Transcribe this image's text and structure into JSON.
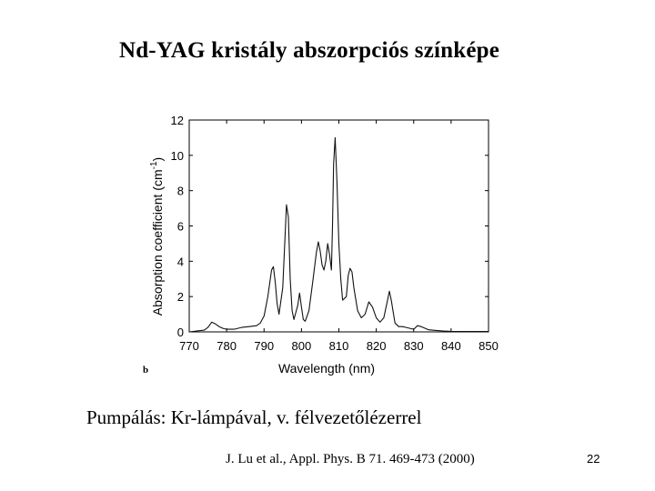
{
  "slide": {
    "title": "Nd-YAG kristály abszorpciós színképe",
    "body_text": "Pumpálás: Kr-lámpával, v. félvezetőlézerrel",
    "citation": "J. Lu et al., Appl. Phys. B 71. 469-473 (2000)",
    "page_number": "22"
  },
  "chart_data": {
    "type": "line",
    "panel_label": "b",
    "xlabel": "Wavelength (nm)",
    "ylabel": "Absorption coefficient (cm",
    "ylabel_superscript": "-1",
    "ylabel_suffix": ")",
    "xlim": [
      770,
      850
    ],
    "ylim": [
      0,
      12
    ],
    "xticks": [
      770,
      780,
      790,
      800,
      810,
      820,
      830,
      840,
      850
    ],
    "yticks": [
      0,
      2,
      4,
      6,
      8,
      10,
      12
    ],
    "grid": false,
    "series": [
      {
        "x": [
          770,
          772,
          774,
          775,
          776,
          777,
          778,
          779,
          780,
          782,
          784,
          786,
          788,
          789,
          790,
          791,
          792,
          792.5,
          793,
          793.5,
          794,
          795,
          796,
          796.5,
          797,
          797.5,
          798,
          799,
          799.5,
          800,
          800.5,
          801,
          802,
          803,
          804,
          804.5,
          805,
          805.5,
          806,
          806.5,
          807,
          807.5,
          808,
          808.3,
          808.6,
          809,
          809.5,
          810,
          810.5,
          811,
          812,
          812.5,
          813,
          813.5,
          814,
          815,
          816,
          817,
          818,
          819,
          820,
          821,
          822,
          823,
          823.5,
          824,
          825,
          826,
          827,
          828,
          829,
          830,
          831,
          832,
          834,
          836,
          838,
          840,
          845,
          850
        ],
        "y": [
          0.0,
          0.05,
          0.1,
          0.25,
          0.55,
          0.45,
          0.3,
          0.2,
          0.15,
          0.15,
          0.25,
          0.3,
          0.35,
          0.5,
          0.9,
          2.0,
          3.5,
          3.7,
          2.8,
          1.6,
          1.0,
          2.5,
          7.2,
          6.5,
          3.0,
          1.2,
          0.7,
          1.5,
          2.2,
          1.4,
          0.7,
          0.6,
          1.2,
          2.8,
          4.5,
          5.1,
          4.6,
          3.8,
          3.5,
          4.0,
          5.0,
          4.4,
          3.5,
          6.0,
          9.5,
          11.0,
          8.5,
          5.0,
          3.0,
          1.8,
          2.0,
          3.2,
          3.6,
          3.4,
          2.5,
          1.2,
          0.8,
          1.0,
          1.7,
          1.4,
          0.8,
          0.55,
          0.8,
          1.8,
          2.3,
          1.8,
          0.5,
          0.3,
          0.3,
          0.25,
          0.2,
          0.15,
          0.35,
          0.3,
          0.12,
          0.08,
          0.05,
          0.03,
          0.02,
          0.02
        ]
      }
    ]
  }
}
